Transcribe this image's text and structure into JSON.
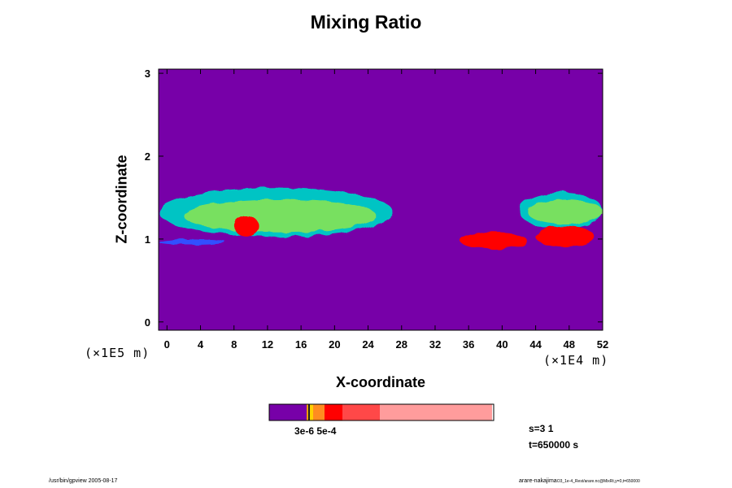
{
  "chart_data": {
    "type": "heatmap",
    "title": "Mixing Ratio",
    "xlabel": "X-coordinate",
    "ylabel": "Z-coordinate",
    "x_ticks": [
      "0",
      "4",
      "8",
      "12",
      "16",
      "20",
      "24",
      "28",
      "32",
      "36",
      "40",
      "44",
      "48",
      "52"
    ],
    "y_ticks": [
      "0",
      "1",
      "2",
      "3"
    ],
    "x_scale_label": "(×1E4 m)",
    "y_scale_label": "(×1E5 m)",
    "xlim": [
      -1,
      52
    ],
    "ylim": [
      -0.1,
      3.05
    ],
    "background_color": "#7700a8",
    "colorbar": {
      "label": "3e-6 5e-4",
      "colors": [
        "#7700a8",
        "#f6a000",
        "#222222",
        "#ffd000",
        "#ff8c20",
        "#ff0000",
        "#ff4848",
        "#ff9c9c"
      ]
    },
    "features": [
      {
        "name": "upper-cloud-layer",
        "color": "#00c4c4",
        "x0": -1,
        "x1": 27,
        "z0": 1.03,
        "z1": 1.62
      },
      {
        "name": "upper-cloud-core",
        "color": "#78e060",
        "x0": 2,
        "x1": 25,
        "z0": 1.08,
        "z1": 1.48
      },
      {
        "name": "lower-cloud-left",
        "color": "#3050ff",
        "x0": -1,
        "x1": 7,
        "z0": 0.93,
        "z1": 1.0
      },
      {
        "name": "right-cloud-layer",
        "color": "#00c4c4",
        "x0": 42,
        "x1": 52,
        "z0": 1.12,
        "z1": 1.57
      },
      {
        "name": "right-cloud-core",
        "color": "#78e060",
        "x0": 43,
        "x1": 52,
        "z0": 1.18,
        "z1": 1.48
      },
      {
        "name": "hot-cell-left",
        "color": "#ff0000",
        "x0": 8,
        "x1": 11,
        "z0": 1.03,
        "z1": 1.28
      },
      {
        "name": "hot-cell-mid",
        "color": "#ff0000",
        "x0": 35,
        "x1": 43,
        "z0": 0.88,
        "z1": 1.08
      },
      {
        "name": "hot-cell-right",
        "color": "#ff0000",
        "x0": 44,
        "x1": 51,
        "z0": 0.9,
        "z1": 1.16
      }
    ]
  },
  "info": {
    "s_label": "s=3 1",
    "t_label": "t=650000 s"
  },
  "footer": {
    "left": "/usr/bin/gpview 2005-08-17",
    "right": "arare-nakajima",
    "right_small": "O3_1e-4_Rest/arare.nc@MixRt,y=0,t=650000"
  }
}
